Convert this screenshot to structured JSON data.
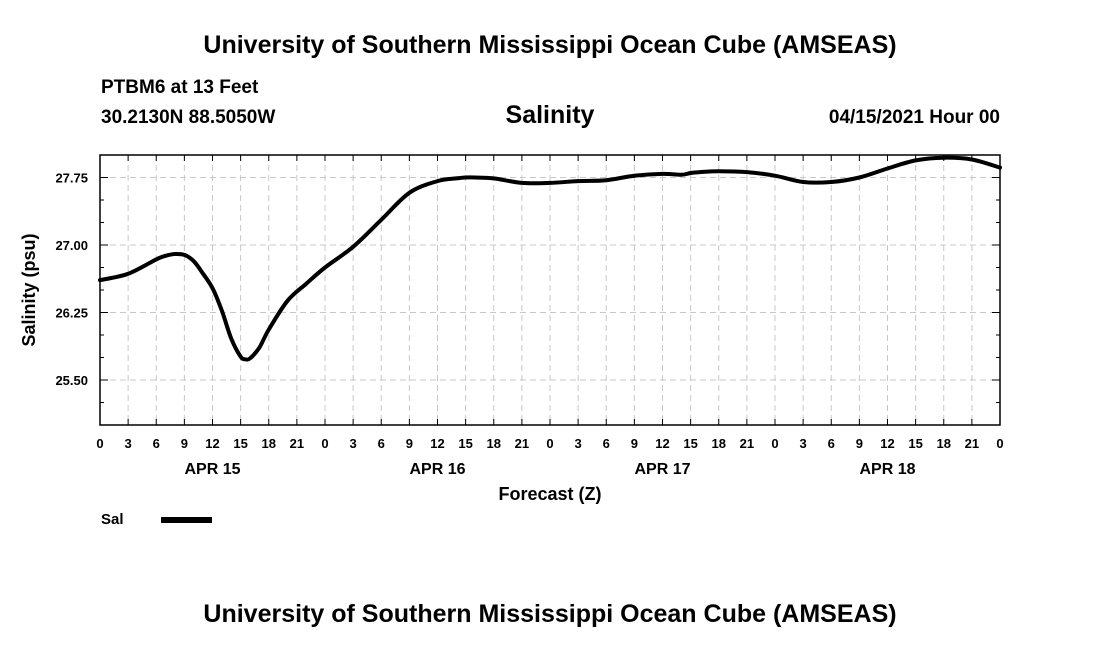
{
  "header": {
    "title": "University of Southern Mississippi Ocean Cube (AMSEAS)",
    "station": "PTBM6 at 13 Feet",
    "coordinates": "30.2130N  88.5050W",
    "run_time": "04/15/2021 Hour 00"
  },
  "footer": {
    "title": "University of Southern Mississippi Ocean Cube (AMSEAS)"
  },
  "legend": {
    "entries": [
      {
        "label": "Sal",
        "color": "#000000"
      }
    ]
  },
  "chart_data": {
    "type": "line",
    "title": "Salinity",
    "xlabel": "Forecast (Z)",
    "ylabel": "Salinity (psu)",
    "x_unit": "forecast hours from 04/15/2021 00Z",
    "xlim": [
      0,
      96
    ],
    "ylim": [
      25.0,
      28.0
    ],
    "grid": true,
    "y_ticks": [
      25.5,
      26.25,
      27.0,
      27.75
    ],
    "y_tick_labels": [
      "25.50",
      "26.25",
      "27.00",
      "27.75"
    ],
    "x_ticks": [
      0,
      3,
      6,
      9,
      12,
      15,
      18,
      21,
      24,
      27,
      30,
      33,
      36,
      39,
      42,
      45,
      48,
      51,
      54,
      57,
      60,
      63,
      66,
      69,
      72,
      75,
      78,
      81,
      84,
      87,
      90,
      93,
      96
    ],
    "x_tick_labels": [
      "0",
      "3",
      "6",
      "9",
      "12",
      "15",
      "18",
      "21",
      "0",
      "3",
      "6",
      "9",
      "12",
      "15",
      "18",
      "21",
      "0",
      "3",
      "6",
      "9",
      "12",
      "15",
      "18",
      "21",
      "0",
      "3",
      "6",
      "9",
      "12",
      "15",
      "18",
      "21",
      "0"
    ],
    "date_labels": [
      {
        "x": 12,
        "label": "APR 15"
      },
      {
        "x": 36,
        "label": "APR 16"
      },
      {
        "x": 60,
        "label": "APR 17"
      },
      {
        "x": 84,
        "label": "APR 18"
      }
    ],
    "series": [
      {
        "name": "Sal",
        "color": "#000000",
        "x": [
          0,
          3,
          6,
          7,
          8,
          9,
          10,
          11,
          12,
          13,
          14,
          15,
          15.5,
          16,
          17,
          18,
          20,
          22,
          24,
          27,
          30,
          33,
          36,
          38,
          39,
          40,
          42,
          45,
          48,
          51,
          54,
          57,
          60,
          62,
          63,
          64,
          66,
          69,
          72,
          75,
          78,
          81,
          84,
          87,
          90,
          93,
          96
        ],
        "values": [
          26.61,
          26.68,
          26.84,
          26.88,
          26.9,
          26.89,
          26.82,
          26.68,
          26.52,
          26.27,
          25.96,
          25.76,
          25.73,
          25.74,
          25.86,
          26.06,
          26.38,
          26.57,
          26.75,
          26.98,
          27.28,
          27.58,
          27.71,
          27.74,
          27.75,
          27.75,
          27.74,
          27.69,
          27.69,
          27.71,
          27.72,
          27.77,
          27.79,
          27.78,
          27.8,
          27.81,
          27.82,
          27.81,
          27.77,
          27.7,
          27.7,
          27.75,
          27.85,
          27.94,
          27.97,
          27.95,
          27.86
        ]
      }
    ]
  }
}
